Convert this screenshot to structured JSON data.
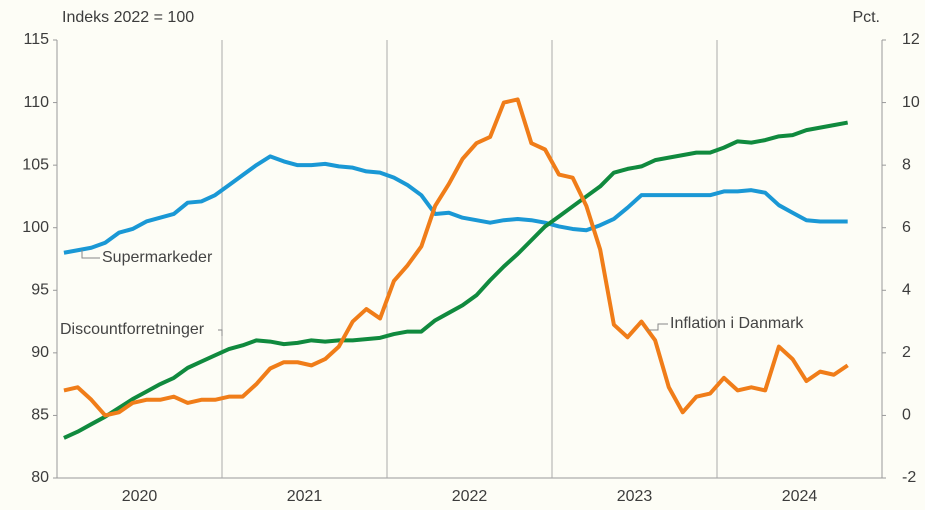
{
  "chart_data": {
    "type": "line",
    "ylabel": "Indeks 2022 = 100",
    "y2label": "Pct.",
    "xlim": [
      2020,
      2025
    ],
    "xticks": [
      {
        "value": 2020.5,
        "label": "2020"
      },
      {
        "value": 2021.5,
        "label": "2021"
      },
      {
        "value": 2022.5,
        "label": "2022"
      },
      {
        "value": 2023.5,
        "label": "2023"
      },
      {
        "value": 2024.5,
        "label": "2024"
      }
    ],
    "xgrid": [
      2021,
      2022,
      2023,
      2024
    ],
    "ylim": [
      80,
      115
    ],
    "yticks": [
      80,
      85,
      90,
      95,
      100,
      105,
      110,
      115
    ],
    "y2lim": [
      -2,
      12
    ],
    "y2ticks": [
      -2,
      0,
      2,
      4,
      6,
      8,
      10,
      12
    ],
    "x": [
      2020.042,
      2020.125,
      2020.208,
      2020.292,
      2020.375,
      2020.458,
      2020.542,
      2020.625,
      2020.708,
      2020.792,
      2020.875,
      2020.958,
      2021.042,
      2021.125,
      2021.208,
      2021.292,
      2021.375,
      2021.458,
      2021.542,
      2021.625,
      2021.708,
      2021.792,
      2021.875,
      2021.958,
      2022.042,
      2022.125,
      2022.208,
      2022.292,
      2022.375,
      2022.458,
      2022.542,
      2022.625,
      2022.708,
      2022.792,
      2022.875,
      2022.958,
      2023.042,
      2023.125,
      2023.208,
      2023.292,
      2023.375,
      2023.458,
      2023.542,
      2023.625,
      2023.708,
      2023.792,
      2023.875,
      2023.958,
      2024.042,
      2024.125,
      2024.208,
      2024.292,
      2024.375,
      2024.458,
      2024.542,
      2024.625,
      2024.708,
      2024.792
    ],
    "series": [
      {
        "name": "Supermarkeder",
        "color": "#1a98d5",
        "values": [
          98.0,
          98.2,
          98.4,
          98.8,
          99.6,
          99.9,
          100.5,
          100.8,
          101.1,
          102.0,
          102.1,
          102.6,
          103.4,
          104.2,
          105.0,
          105.7,
          105.3,
          105.0,
          105.0,
          105.1,
          104.9,
          104.8,
          104.5,
          104.4,
          104.0,
          103.4,
          102.6,
          101.1,
          101.2,
          100.8,
          100.6,
          100.4,
          100.6,
          100.7,
          100.6,
          100.4,
          100.1,
          99.9,
          99.8,
          100.2,
          100.7,
          101.6,
          102.6,
          102.6,
          102.6,
          102.6,
          102.6,
          102.6,
          102.9,
          102.9,
          103.0,
          102.8,
          101.8,
          101.2,
          100.6,
          100.5,
          100.5,
          100.5
        ]
      },
      {
        "name": "Discountforretninger",
        "color": "#108a3e",
        "values": [
          83.2,
          83.7,
          84.3,
          84.9,
          85.6,
          86.3,
          86.9,
          87.5,
          88.0,
          88.8,
          89.3,
          89.8,
          90.3,
          90.6,
          91.0,
          90.9,
          90.7,
          90.8,
          91.0,
          90.9,
          91.0,
          91.0,
          91.1,
          91.2,
          91.5,
          91.7,
          91.7,
          92.6,
          93.2,
          93.8,
          94.6,
          95.8,
          96.9,
          97.9,
          99.0,
          100.1,
          100.9,
          101.7,
          102.5,
          103.3,
          104.4,
          104.7,
          104.9,
          105.4,
          105.6,
          105.8,
          106.0,
          106.0,
          106.4,
          106.9,
          106.8,
          107.0,
          107.3,
          107.4,
          107.8,
          108.0,
          108.2,
          108.4
        ]
      },
      {
        "name": "Inflation i Danmark",
        "color": "#f07d19",
        "axis": "y2",
        "values": [
          0.8,
          0.9,
          0.5,
          0.0,
          0.1,
          0.4,
          0.5,
          0.5,
          0.6,
          0.4,
          0.5,
          0.5,
          0.6,
          0.6,
          1.0,
          1.5,
          1.7,
          1.7,
          1.6,
          1.8,
          2.2,
          3.0,
          3.4,
          3.1,
          4.3,
          4.8,
          5.4,
          6.7,
          7.4,
          8.2,
          8.7,
          8.9,
          10.0,
          10.1,
          8.7,
          8.5,
          7.7,
          7.6,
          6.7,
          5.3,
          2.9,
          2.5,
          3.0,
          2.4,
          0.9,
          0.1,
          0.6,
          0.7,
          1.2,
          0.8,
          0.9,
          0.8,
          2.2,
          1.8,
          1.1,
          1.4,
          1.3,
          1.6
        ]
      }
    ]
  }
}
